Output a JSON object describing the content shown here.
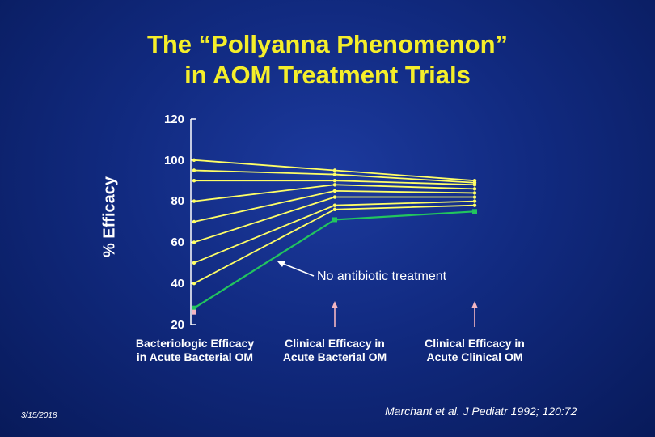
{
  "title_line1": "The “Pollyanna Phenomenon”",
  "title_line2": "in AOM Treatment Trials",
  "footer_date": "3/15/2018",
  "citation": "Marchant et al. J Pediatr 1992; 120:72",
  "annotation": "No antibiotic treatment",
  "colors": {
    "background": "#112a80",
    "title": "#f5ee2a",
    "line": "#ffff66",
    "highlight": "#22c55e",
    "arrow": "#f4b6c2",
    "text": "#ffffff"
  },
  "chart_data": {
    "type": "line",
    "ylabel": "% Efficacy",
    "ylim": [
      20,
      120
    ],
    "yticks": [
      120,
      100,
      80,
      60,
      40,
      20
    ],
    "categories": [
      "Bacteriologic Efficacy in Acute Bacterial OM",
      "Clinical Efficacy in Acute Bacterial OM",
      "Clinical Efficacy in Acute Clinical OM"
    ],
    "category_lines": [
      [
        "Bacteriologic Efficacy",
        "in Acute Bacterial OM"
      ],
      [
        "Clinical Efficacy in",
        "Acute Bacterial OM"
      ],
      [
        "Clinical Efficacy in",
        "Acute Clinical OM"
      ]
    ],
    "series": [
      {
        "values": [
          100,
          95,
          90
        ]
      },
      {
        "values": [
          95,
          93,
          89
        ]
      },
      {
        "values": [
          90,
          90,
          88
        ]
      },
      {
        "values": [
          80,
          88,
          86
        ]
      },
      {
        "values": [
          70,
          85,
          84
        ]
      },
      {
        "values": [
          60,
          82,
          82
        ]
      },
      {
        "values": [
          50,
          78,
          80
        ]
      },
      {
        "values": [
          40,
          76,
          78
        ]
      },
      {
        "values": [
          28,
          71,
          75
        ],
        "highlight": true
      }
    ],
    "arrows_at_categories": [
      1,
      2
    ],
    "grid": false
  }
}
